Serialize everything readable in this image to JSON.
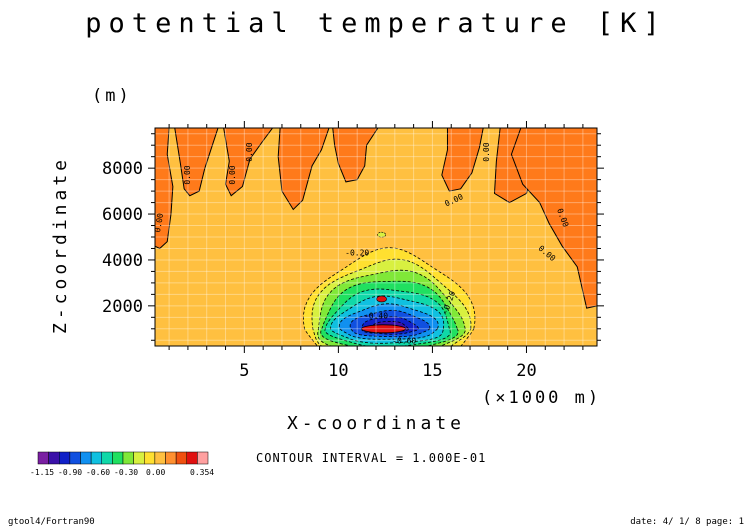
{
  "chart_data": {
    "type": "heatmap",
    "title": "potential temperature [K]",
    "xlabel": "X-coordinate",
    "ylabel": "Z-coordinate",
    "x_unit": "(×1000 m)",
    "z_unit": "(m)",
    "xlim": [
      0.25,
      23.75
    ],
    "ylim": [
      250,
      9750
    ],
    "x_ticks": [
      5,
      10,
      15,
      20
    ],
    "y_ticks": [
      2000,
      4000,
      6000,
      8000
    ],
    "contour_interval_text": "CONTOUR INTERVAL = 1.000E-01",
    "contour_labels": [
      "0.00",
      "0.00",
      "0.00",
      "0.00",
      "0.00",
      "0.00",
      "0.00",
      "0.00",
      "-0.20",
      "-0.20",
      "-0.40",
      "-0.60"
    ],
    "colorbar": {
      "tick_labels": [
        "-1.15",
        "-0.90",
        "-0.60",
        "-0.30",
        "0.00",
        "0.354"
      ],
      "colors": [
        "#7a1fa2",
        "#3a10a8",
        "#1020c8",
        "#1050e0",
        "#1090f0",
        "#10c0e0",
        "#10d8a8",
        "#20e060",
        "#80e838",
        "#d8f040",
        "#ffe030",
        "#ffc040",
        "#ff9030",
        "#f05010",
        "#e01010",
        "#ffa0a0"
      ]
    },
    "background_level_color": "#ffc040",
    "positive_level_color": "#ff7a1a",
    "grid": true
  },
  "footer": {
    "left": "gtool4/Fortran90",
    "right": "date: 4/ 1/ 8 page: 1"
  }
}
